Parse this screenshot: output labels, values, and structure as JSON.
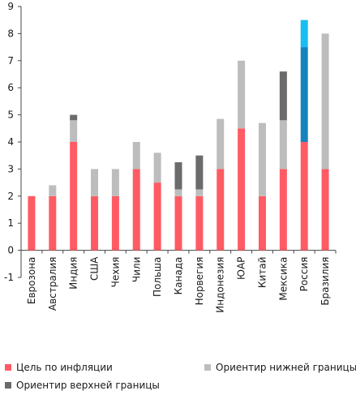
{
  "chart_data": {
    "type": "bar",
    "stacked": true,
    "categories": [
      "Еврозона",
      "Австралия",
      "Индия",
      "США",
      "Чехия",
      "Чили",
      "Польша",
      "Канада",
      "Норвегия",
      "Индонезия",
      "ЮАР",
      "Китай",
      "Мексика",
      "Россия",
      "Бразилия"
    ],
    "ylim": [
      -1,
      9
    ],
    "yticks": [
      -1,
      0,
      1,
      2,
      3,
      4,
      5,
      6,
      7,
      8,
      9
    ],
    "grid": false,
    "series": [
      {
        "name": "Цель по инфляции",
        "color": "#ff5b64",
        "values": [
          2,
          2,
          4,
          2,
          2,
          3,
          2.5,
          2,
          2,
          3,
          4.5,
          2,
          3,
          4,
          3
        ]
      },
      {
        "name": "Ориентир нижней границы",
        "color": "#bdbdbd",
        "values": [
          0,
          0.4,
          0.8,
          1,
          1,
          1,
          1.1,
          0.25,
          0.25,
          1.85,
          2.5,
          2.7,
          1.8,
          0,
          5
        ]
      },
      {
        "name": "Ориентир верхней границы",
        "color": "#6b6b6b",
        "values": [
          0,
          0,
          0.2,
          0,
          0,
          0,
          0,
          1,
          1.25,
          0,
          0,
          0,
          1.8,
          0,
          0
        ]
      }
    ],
    "special": {
      "category": "Россия",
      "segments": [
        {
          "value": 4,
          "color": "#ff5b64"
        },
        {
          "value": 3.5,
          "color": "#1683bd"
        },
        {
          "value": 1,
          "color": "#19bdf0"
        }
      ]
    },
    "legend": {
      "placement": "bottom",
      "items": [
        {
          "label": "Цель по инфляции",
          "color": "#ff5b64"
        },
        {
          "label": "Ориентир нижней границы",
          "color": "#bdbdbd"
        },
        {
          "label": "Ориентир верхней границы",
          "color": "#6b6b6b"
        }
      ]
    }
  }
}
